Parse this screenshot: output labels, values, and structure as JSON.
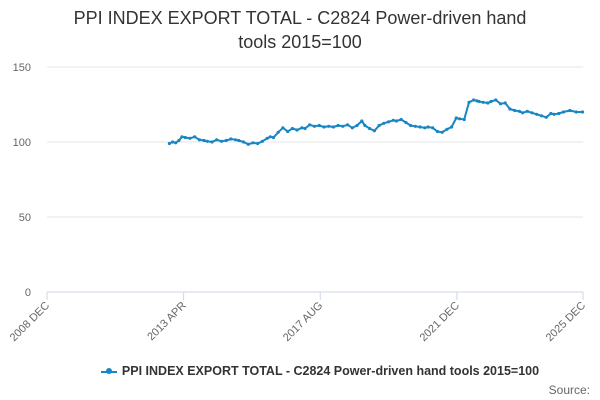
{
  "chart_data": {
    "type": "line",
    "title": "PPI INDEX EXPORT TOTAL - C2824 Power-driven hand tools 2015=100",
    "title_lines": [
      "PPI INDEX EXPORT TOTAL - C2824 Power-driven hand",
      "tools 2015=100"
    ],
    "xlabel": "",
    "ylabel": "",
    "ylim": [
      0,
      150
    ],
    "yticks": [
      0,
      50,
      100,
      150
    ],
    "xlim": [
      2008.917,
      2025.917
    ],
    "xtick_labels": [
      "2008 DEC",
      "2013 APR",
      "2017 AUG",
      "2021 DEC",
      "2025 DEC"
    ],
    "xtick_values": [
      2008.917,
      2013.25,
      2017.583,
      2021.917,
      2025.917
    ],
    "grid": true,
    "legend_position": "bottom",
    "series": [
      {
        "name": "PPI INDEX EXPORT TOTAL - C2824 Power-driven hand tools 2015=100",
        "color": "#1a85c3",
        "x": [
          2012.8,
          2012.9,
          2013.0,
          2013.1,
          2013.2,
          2013.3,
          2013.45,
          2013.6,
          2013.75,
          2013.9,
          2014.0,
          2014.15,
          2014.3,
          2014.45,
          2014.6,
          2014.75,
          2014.9,
          2015.0,
          2015.15,
          2015.3,
          2015.45,
          2015.6,
          2015.75,
          2015.9,
          2016.0,
          2016.1,
          2016.25,
          2016.4,
          2016.55,
          2016.7,
          2016.85,
          2017.0,
          2017.1,
          2017.25,
          2017.4,
          2017.55,
          2017.7,
          2017.85,
          2018.0,
          2018.15,
          2018.3,
          2018.45,
          2018.6,
          2018.75,
          2018.9,
          2019.0,
          2019.15,
          2019.3,
          2019.45,
          2019.6,
          2019.75,
          2019.9,
          2020.0,
          2020.15,
          2020.3,
          2020.45,
          2020.6,
          2020.75,
          2020.9,
          2021.0,
          2021.15,
          2021.3,
          2021.45,
          2021.6,
          2021.75,
          2021.9,
          2022.0,
          2022.15,
          2022.3,
          2022.45,
          2022.55,
          2022.62,
          2022.75,
          2022.9,
          2023.0,
          2023.15,
          2023.3,
          2023.45,
          2023.6,
          2023.75,
          2023.9,
          2024.0,
          2024.15,
          2024.3,
          2024.45,
          2024.6,
          2024.75,
          2024.9,
          2025.0,
          2025.15,
          2025.3,
          2025.5,
          2025.7,
          2025.9
        ],
        "values": [
          99,
          100,
          99.5,
          101,
          103.5,
          103,
          102.5,
          103.5,
          101.5,
          101,
          100.5,
          100,
          101.5,
          100.5,
          101,
          102,
          101.5,
          101,
          100,
          98.5,
          99.5,
          99,
          100.5,
          102.5,
          103.5,
          103,
          106.5,
          109.5,
          107,
          109,
          108,
          109.5,
          109,
          111.5,
          110.5,
          111,
          110,
          110.5,
          110,
          111,
          110.5,
          111.5,
          109.5,
          111,
          114,
          111,
          109,
          107.5,
          111,
          112.5,
          113.5,
          114.5,
          114,
          115,
          113,
          111,
          110.5,
          110,
          109.5,
          110,
          109.5,
          107,
          106.5,
          108.5,
          110,
          116,
          115.5,
          115,
          126.5,
          128,
          127.5,
          127,
          126.5,
          126,
          127,
          128,
          125.5,
          126,
          122,
          121,
          120.5,
          119.5,
          120.5,
          119.5,
          118.5,
          117.5,
          116.5,
          119,
          118.5,
          119,
          120,
          121,
          120,
          120
        ]
      }
    ]
  },
  "legend": {
    "label": "PPI INDEX EXPORT TOTAL - C2824 Power-driven hand tools 2015=100"
  },
  "footer": {
    "source_label": "Source:"
  }
}
